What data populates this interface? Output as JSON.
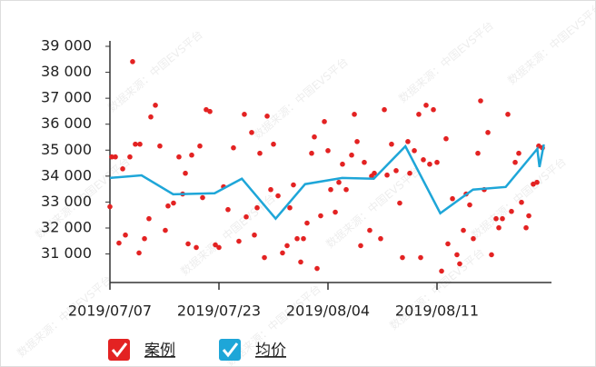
{
  "chart_data": {
    "type": "scatter",
    "watermark": "数据来源：中国EVS平台",
    "xlim": [
      0,
      4.05
    ],
    "xticks": [
      {
        "value": 0,
        "label": "2019/07/07"
      },
      {
        "value": 1,
        "label": "2019/07/23"
      },
      {
        "value": 2,
        "label": "2019/08/04"
      },
      {
        "value": 3,
        "label": "2019/08/11"
      }
    ],
    "ylim": [
      29900,
      39000
    ],
    "yticks": [
      {
        "value": 31000,
        "label": "31 000"
      },
      {
        "value": 32000,
        "label": "32 000"
      },
      {
        "value": 33000,
        "label": "33 000"
      },
      {
        "value": 34000,
        "label": "34 000"
      },
      {
        "value": 35000,
        "label": "35 000"
      },
      {
        "value": 36000,
        "label": "36 000"
      },
      {
        "value": 37000,
        "label": "37 000"
      },
      {
        "value": 38000,
        "label": "38 000"
      },
      {
        "value": 39000,
        "label": "39 000"
      }
    ],
    "series": [
      {
        "name": "案例",
        "type": "scatter",
        "color": "#e32222",
        "x": [
          0,
          0.017,
          0.05,
          0.083,
          0.117,
          0.142,
          0.183,
          0.208,
          0.233,
          0.275,
          0.267,
          0.317,
          0.358,
          0.375,
          0.417,
          0.458,
          0.508,
          0.533,
          0.583,
          0.633,
          0.667,
          0.692,
          0.717,
          0.75,
          0.792,
          0.825,
          0.85,
          0.883,
          0.917,
          0.967,
          1,
          1.042,
          1.083,
          1.133,
          1.183,
          1.233,
          1.25,
          1.3,
          1.325,
          1.35,
          1.375,
          1.417,
          1.442,
          1.475,
          1.5,
          1.542,
          1.583,
          1.625,
          1.65,
          1.683,
          1.717,
          1.75,
          1.775,
          1.808,
          1.85,
          1.875,
          1.9,
          1.933,
          1.967,
          2,
          2.025,
          2.067,
          2.1,
          2.133,
          2.167,
          2.217,
          2.242,
          2.267,
          2.3,
          2.333,
          2.383,
          2.4,
          2.425,
          2.483,
          2.517,
          2.542,
          2.583,
          2.625,
          2.658,
          2.683,
          2.733,
          2.75,
          2.792,
          2.833,
          2.85,
          2.875,
          2.9,
          2.933,
          2.967,
          3,
          3.042,
          3.083,
          3.1,
          3.142,
          3.183,
          3.208,
          3.242,
          3.267,
          3.3,
          3.333,
          3.375,
          3.4,
          3.433,
          3.467,
          3.5,
          3.542,
          3.567,
          3.6,
          3.65,
          3.683,
          3.717,
          3.75,
          3.775,
          3.817,
          3.842,
          3.883,
          3.917,
          3.933,
          3.967
        ],
        "values": [
          32820,
          34740,
          34740,
          31420,
          34280,
          31730,
          34740,
          38410,
          35230,
          35230,
          31040,
          31590,
          32360,
          36280,
          36730,
          35160,
          31910,
          32850,
          32960,
          34740,
          33310,
          34110,
          31390,
          34810,
          31250,
          35160,
          33170,
          36560,
          36490,
          31350,
          31250,
          33590,
          32710,
          35090,
          31490,
          36380,
          32430,
          35680,
          31730,
          32780,
          34880,
          30860,
          36310,
          33480,
          35230,
          33240,
          31040,
          31320,
          32780,
          33660,
          31590,
          30690,
          31590,
          32190,
          34880,
          35510,
          30440,
          32470,
          36100,
          34980,
          33480,
          32610,
          33760,
          34460,
          33480,
          34810,
          36380,
          35330,
          31320,
          34530,
          31910,
          34000,
          34110,
          31590,
          36560,
          34040,
          35230,
          34210,
          32960,
          30860,
          35330,
          34110,
          34980,
          36380,
          30860,
          34630,
          36730,
          34460,
          36560,
          34530,
          30340,
          35440,
          31390,
          33130,
          30970,
          30620,
          31910,
          33310,
          32890,
          31590,
          34880,
          36900,
          33480,
          35680,
          30970,
          32360,
          32010,
          32360,
          36380,
          32640,
          34530,
          34880,
          32990,
          32010,
          32470,
          33690,
          33760,
          35160,
          35090
        ]
      },
      {
        "name": "均价",
        "type": "line",
        "color": "#1ea6d8",
        "x": [
          0,
          0.29,
          0.58,
          0.96,
          1.21,
          1.52,
          1.79,
          2.13,
          2.42,
          2.71,
          3.03,
          3.33,
          3.63,
          3.92,
          3.94,
          3.98
        ],
        "values": [
          33930,
          34030,
          33300,
          33340,
          33900,
          32360,
          33690,
          33930,
          33900,
          35150,
          32570,
          33480,
          33580,
          35050,
          34350,
          35220
        ]
      }
    ]
  }
}
